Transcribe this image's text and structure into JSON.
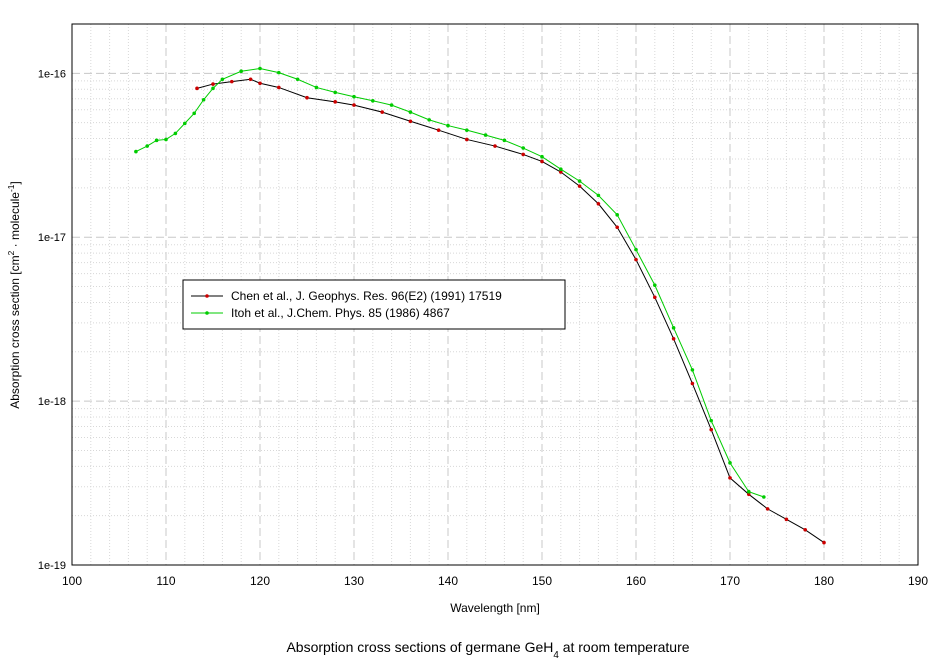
{
  "chart_data": {
    "type": "line",
    "title": [
      "Absorption cross sections of germane GeH",
      "4",
      " at room temperature"
    ],
    "xlabel": "Wavelength [nm]",
    "ylabel": [
      "Absorption cross section [cm",
      "2",
      " · molecule",
      "-1",
      "]"
    ],
    "xlim": [
      100,
      190
    ],
    "xticks": [
      100,
      110,
      120,
      130,
      140,
      150,
      160,
      170,
      180,
      190
    ],
    "ylim": [
      1e-19,
      2e-16
    ],
    "yticks": [
      {
        "value": 1e-19,
        "label": "1e-19"
      },
      {
        "value": 1e-18,
        "label": "1e-18"
      },
      {
        "value": 1e-17,
        "label": "1e-17"
      },
      {
        "value": 1e-16,
        "label": "1e-16"
      }
    ],
    "ylog": true,
    "grid": true,
    "legend": "left",
    "series": [
      {
        "name": "Chen et al., J. Geophys. Res. 96(E2) (1991) 17519",
        "color": "#cc0000",
        "line_color": "#000000",
        "x": [
          113.3,
          115,
          117,
          119,
          120,
          122,
          125,
          128,
          130,
          133,
          136,
          139,
          142,
          145,
          148,
          150,
          152,
          154,
          156,
          158,
          160,
          162,
          164,
          166,
          168,
          170,
          172,
          174,
          176,
          178,
          180
        ],
        "values": [
          8.1e-17,
          8.6e-17,
          8.9e-17,
          9.2e-17,
          8.7e-17,
          8.2e-17,
          7.1e-17,
          6.7e-17,
          6.4e-17,
          5.8e-17,
          5.1e-17,
          4.5e-17,
          3.95e-17,
          3.6e-17,
          3.2e-17,
          2.9e-17,
          2.5e-17,
          2.05e-17,
          1.6e-17,
          1.15e-17,
          7.3e-18,
          4.3e-18,
          2.4e-18,
          1.28e-18,
          6.7e-19,
          3.4e-19,
          2.7e-19,
          2.2e-19,
          1.9e-19,
          1.64e-19,
          1.37e-19
        ]
      },
      {
        "name": "Itoh et al., J.Chem. Phys. 85 (1986) 4867",
        "color": "#00cc00",
        "line_color": "#00cc00",
        "x": [
          106.8,
          108,
          109,
          110,
          111,
          112,
          113,
          114,
          115,
          116,
          118,
          120,
          122,
          124,
          126,
          128,
          130,
          132,
          134,
          136,
          138,
          140,
          142,
          144,
          146,
          148,
          150,
          152,
          154,
          156,
          158,
          160,
          162,
          164,
          166,
          168,
          170,
          172,
          173.6
        ],
        "values": [
          3.33e-17,
          3.6e-17,
          3.9e-17,
          3.95e-17,
          4.3e-17,
          4.95e-17,
          5.7e-17,
          6.9e-17,
          8.1e-17,
          9.2e-17,
          1.03e-16,
          1.07e-16,
          1.01e-16,
          9.2e-17,
          8.2e-17,
          7.65e-17,
          7.2e-17,
          6.8e-17,
          6.4e-17,
          5.8e-17,
          5.2e-17,
          4.8e-17,
          4.5e-17,
          4.2e-17,
          3.9e-17,
          3.5e-17,
          3.1e-17,
          2.6e-17,
          2.2e-17,
          1.8e-17,
          1.37e-17,
          8.4e-18,
          5.1e-18,
          2.8e-18,
          1.55e-18,
          7.6e-19,
          4.2e-19,
          2.8e-19,
          2.6e-19
        ]
      }
    ]
  }
}
